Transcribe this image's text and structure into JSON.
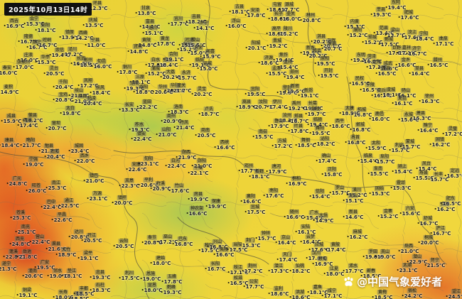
{
  "header": {
    "timestamp": "2025年10月13日14时"
  },
  "watermark": {
    "icon": "paw-logo-icon",
    "text": "@中国气象爱好者"
  },
  "map": {
    "description": "地面气温实况图（中国中部地区）",
    "unit": "℃",
    "palette": {
      "cool_green": "#9ccb5d",
      "warm_yellow": "#eed338",
      "hot_orange": "#ee9a3c",
      "very_hot_red": "#d8512a",
      "boundary_gray": "#6b6a55"
    }
  },
  "stations": [
    [
      "西吉",
      "16.9℃",
      20,
      30
    ],
    [
      "会宁",
      "15.3℃",
      48,
      27
    ],
    [
      "彭阳",
      "18.1℃",
      64,
      36
    ],
    [
      "环县",
      "12.3℃",
      137,
      5
    ],
    [
      "庆城",
      "13.5℃",
      131,
      29
    ],
    [
      "镇原",
      "13.9℃",
      98,
      46
    ],
    [
      "西峰",
      "14.2℃",
      117,
      47
    ],
    [
      "宁县",
      "11.0℃",
      134,
      57
    ],
    [
      "隆德",
      "16.7℃",
      40,
      52
    ],
    [
      "静宁",
      "16.7℃",
      52,
      60
    ],
    [
      "崆峒",
      "16.7℃",
      66,
      57
    ],
    [
      "庄浪",
      "16.0℃",
      40,
      78
    ],
    [
      "华亭",
      "15.3℃",
      64,
      81
    ],
    [
      "崇信",
      "19.4℃",
      84,
      71
    ],
    [
      "泾川",
      "17.2℃",
      102,
      70
    ],
    [
      "灵台",
      "20.5℃",
      76,
      97
    ],
    [
      "张家川",
      "17.0℃",
      33,
      88
    ],
    [
      "秦安",
      "16.0℃",
      10,
      96
    ],
    [
      "长武",
      "16.3℃",
      114,
      83
    ],
    [
      "彬州",
      "18.5℃",
      124,
      85
    ],
    [
      "旬邑",
      "16.0℃",
      143,
      87
    ],
    [
      "甘泉",
      "13.8℃",
      205,
      12
    ],
    [
      "宜川",
      "17.7℃",
      251,
      27
    ],
    [
      "富县",
      "14.1℃",
      211,
      31
    ],
    [
      "洛川",
      "15.1℃",
      215,
      40
    ],
    [
      "黄龙",
      "17.8℃",
      232,
      55
    ],
    [
      "黄陵",
      "14.8℃",
      206,
      57
    ],
    [
      "宜君",
      "14.8℃",
      194,
      66
    ],
    [
      "铜川",
      "17.8℃",
      179,
      95
    ],
    [
      "白水",
      "17.8℃",
      219,
      85
    ],
    [
      "澄城",
      "18.4℃",
      236,
      85
    ],
    [
      "合阳",
      "19.1℃",
      244,
      77
    ],
    [
      "蒲城",
      "15.2℃",
      219,
      97
    ],
    [
      "韩城",
      "15.2℃",
      264,
      63
    ],
    [
      "大荔",
      "20.2℃",
      240,
      102
    ],
    [
      "吉县",
      "18.2℃",
      276,
      24
    ],
    [
      "乡宁",
      "14.1℃",
      287,
      33
    ],
    [
      "河津",
      "15.5℃",
      266,
      57
    ],
    [
      "稷山",
      "15.5℃",
      275,
      57
    ],
    [
      "万荣",
      "15.0℃",
      279,
      68
    ],
    [
      "临猗",
      "19.1℃",
      281,
      85
    ],
    [
      "运城",
      "15.0℃",
      292,
      90
    ],
    [
      "永济",
      "15.7℃",
      262,
      103
    ],
    [
      "闻喜",
      "15.9℃",
      296,
      73
    ],
    [
      "古县",
      "18.1℃",
      337,
      10
    ],
    [
      "安泽",
      "17.8℃",
      359,
      15
    ],
    [
      "浮山",
      "16.0℃",
      332,
      30
    ],
    [
      "屯留",
      "18.6℃",
      390,
      7
    ],
    [
      "潞城",
      "17.7℃",
      407,
      7
    ],
    [
      "长子",
      "18.6℃",
      392,
      20
    ],
    [
      "壶关",
      "16.0℃",
      409,
      20
    ],
    [
      "高平",
      "18.6℃",
      389,
      41
    ],
    [
      "陵川",
      "15.2℃",
      405,
      41
    ],
    [
      "阳城",
      "20.1℃",
      360,
      61
    ],
    [
      "晋城",
      "19.2℃",
      390,
      58
    ],
    [
      "林州",
      "20.8℃",
      437,
      22
    ],
    [
      "卫辉",
      "20.1℃",
      466,
      58
    ],
    [
      "淇县",
      "20.2℃",
      452,
      52
    ],
    [
      "浚县",
      "20.7℃",
      467,
      62
    ],
    [
      "新乡",
      "19.5℃",
      437,
      68
    ],
    [
      "修武",
      "20.2℃",
      446,
      72
    ],
    [
      "焦作",
      "19.4℃",
      399,
      78
    ],
    [
      "济源",
      "18.6℃",
      378,
      82
    ],
    [
      "孟州",
      "15.4℃",
      405,
      88
    ],
    [
      "孟津",
      "15.5℃",
      389,
      97
    ],
    [
      "原阳",
      "19.5℃",
      457,
      83
    ],
    [
      "郑州",
      "19.4℃",
      414,
      102
    ],
    [
      "开封",
      "19.5℃",
      462,
      100
    ],
    [
      "内黄",
      "15.3℃",
      499,
      31
    ],
    [
      "濮阳",
      "15.2℃",
      503,
      43
    ],
    [
      "东阿",
      "19.4℃",
      557,
      4
    ],
    [
      "莘县",
      "19.3℃",
      536,
      14
    ],
    [
      "肥城",
      "17.6℃",
      575,
      18
    ],
    [
      "范县",
      "13.4℃",
      540,
      40
    ],
    [
      "梁山",
      "13.7℃",
      556,
      43
    ],
    [
      "汶上",
      "17.6℃",
      580,
      46
    ],
    [
      "宁阳",
      "18.4℃",
      596,
      48
    ],
    [
      "曲阜",
      "17.1℃",
      624,
      55
    ],
    [
      "郓城",
      "15.2℃",
      524,
      53
    ],
    [
      "鄄城",
      "17.5℃",
      547,
      56
    ],
    [
      "巨野",
      "17.6℃",
      558,
      68
    ],
    [
      "嘉祥",
      "17.1℃",
      572,
      68
    ],
    [
      "济宁",
      "16.7℃",
      586,
      69
    ],
    [
      "东明",
      "19.3℃",
      508,
      78
    ],
    [
      "菏泽",
      "16.0℃",
      523,
      80
    ],
    [
      "定陶",
      "17.3℃",
      530,
      88
    ],
    [
      "成武",
      "16.6℃",
      546,
      90
    ],
    [
      "金乡",
      "16.6℃",
      571,
      85
    ],
    [
      "滕州",
      "16.5℃",
      616,
      85
    ],
    [
      "曹县",
      "16.5℃",
      543,
      97
    ],
    [
      "单县",
      "16.4℃",
      590,
      97
    ],
    [
      "麦积",
      "14.9℃",
      12,
      123
    ],
    [
      "千阳",
      "20.4℃",
      89,
      116
    ],
    [
      "凤翔",
      "17.2℃",
      124,
      114
    ],
    [
      "宝鸡",
      "20.8℃",
      89,
      134
    ],
    [
      "岐山",
      "21.1℃",
      111,
      128
    ],
    [
      "眉县",
      "21.0℃",
      116,
      136
    ],
    [
      "扶风",
      "18.4℃",
      141,
      124
    ],
    [
      "杨凌",
      "20.4℃",
      129,
      139
    ],
    [
      "太白",
      "19.8℃",
      99,
      153
    ],
    [
      "三原",
      "18.1℃",
      197,
      109
    ],
    [
      "泾阳",
      "19.3℃",
      189,
      118
    ],
    [
      "咸阳",
      "18.8℃",
      202,
      123
    ],
    [
      "华州",
      "20.6℃",
      229,
      123
    ],
    [
      "华阴",
      "20.3℃",
      246,
      121
    ],
    [
      "潼关",
      "21.7℃",
      255,
      121
    ],
    [
      "蓝田",
      "22.2℃",
      207,
      144
    ],
    [
      "长安",
      "13.3℃",
      182,
      148
    ],
    [
      "成县",
      "15.9℃",
      16,
      164
    ],
    [
      "徽县",
      "16.2℃",
      46,
      163
    ],
    [
      "两当",
      "17.4℃",
      39,
      170
    ],
    [
      "留坝",
      "20.7℃",
      79,
      174
    ],
    [
      "略阳",
      "21.7℃",
      43,
      198
    ],
    [
      "康县",
      "18.4℃",
      13,
      198
    ],
    [
      "勉县",
      "21.7℃",
      69,
      206
    ],
    [
      "城固",
      "23.4℃",
      111,
      206
    ],
    [
      "南郑",
      "20.4℃",
      77,
      214
    ],
    [
      "宁强",
      "19.0℃",
      47,
      225
    ],
    [
      "西乡",
      "22.0℃",
      119,
      220
    ],
    [
      "镇巴",
      "21.0℃",
      132,
      248
    ],
    [
      "洛南",
      "18.3℃",
      251,
      151
    ],
    [
      "商州",
      "20.9℃",
      241,
      164
    ],
    [
      "丹凤",
      "21.4℃",
      259,
      173
    ],
    [
      "柞水",
      "19.3℃",
      196,
      176
    ],
    [
      "山阳",
      "21.0℃",
      234,
      183
    ],
    [
      "镇安",
      "22.4℃",
      199,
      189
    ],
    [
      "商南",
      "20.5℃",
      289,
      184
    ],
    [
      "灵宝",
      "20.2℃",
      284,
      126
    ],
    [
      "卢氏",
      "18.7℃",
      294,
      154
    ],
    [
      "西峡",
      "16.6℃",
      316,
      201
    ],
    [
      "宜阳",
      "19.5℃",
      359,
      126
    ],
    [
      "登封",
      "19.0℃",
      404,
      124
    ],
    [
      "新密",
      "19.5℃",
      415,
      122
    ],
    [
      "新郑",
      "19.1℃",
      434,
      128
    ],
    [
      "嵩县",
      "18.9℃",
      347,
      144
    ],
    [
      "汝阳",
      "20.7℃",
      370,
      144
    ],
    [
      "伊川",
      "17.4℃",
      390,
      144
    ],
    [
      "禹州",
      "19.2℃",
      417,
      146
    ],
    [
      "长葛",
      "19.4℃",
      440,
      146
    ],
    [
      "鄢陵",
      "19.7℃",
      444,
      154
    ],
    [
      "汝州",
      "18.3℃",
      404,
      163
    ],
    [
      "郏县",
      "18.7℃",
      420,
      164
    ],
    [
      "鲁山",
      "17.9℃",
      392,
      171
    ],
    [
      "临颍",
      "19.4℃",
      447,
      169
    ],
    [
      "西平",
      "18.6℃",
      478,
      171
    ],
    [
      "南召",
      "15.5℃",
      370,
      186
    ],
    [
      "叶县",
      "17.8℃",
      420,
      178
    ],
    [
      "舞阳",
      "19.5℃",
      450,
      181
    ],
    [
      "方城",
      "17.2℃",
      397,
      199
    ],
    [
      "舞钢",
      "18.5℃",
      430,
      198
    ],
    [
      "泌阳",
      "18.2℃",
      457,
      196
    ],
    [
      "民权",
      "16.5℃",
      506,
      111
    ],
    [
      "宁陵",
      "16.5℃",
      521,
      120
    ],
    [
      "商丘",
      "16.1℃",
      537,
      128
    ],
    [
      "虞城",
      "18.1℃",
      550,
      127
    ],
    [
      "砀山",
      "16.1℃",
      571,
      128
    ],
    [
      "夏邑",
      "16.1℃",
      566,
      139
    ],
    [
      "永城",
      "15.6℃",
      575,
      162
    ],
    [
      "萧县",
      "15.3℃",
      592,
      160
    ],
    [
      "徐州",
      "16.3℃",
      604,
      136
    ],
    [
      "睢宁",
      "16.4℃",
      602,
      177
    ],
    [
      "灵璧",
      "17.2℃",
      637,
      182
    ],
    [
      "柘城",
      "16.8℃",
      509,
      155
    ],
    [
      "鹿邑",
      "16.0℃",
      534,
      161
    ],
    [
      "太康",
      "18.9℃",
      492,
      153
    ],
    [
      "郸城",
      "16.8℃",
      507,
      176
    ],
    [
      "界首",
      "16.8℃",
      500,
      194
    ],
    [
      "太和",
      "15.9℃",
      529,
      202
    ],
    [
      "利辛",
      "15.7℃",
      562,
      205
    ],
    [
      "蒙城",
      "15.7℃",
      577,
      200
    ],
    [
      "固镇",
      "16.2℃",
      619,
      197
    ],
    [
      "广元",
      "24.8℃",
      24,
      252
    ],
    [
      "旺苍",
      "26.0℃",
      51,
      262
    ],
    [
      "南江",
      "25.3℃",
      79,
      258
    ],
    [
      "苍溪",
      "25.3℃",
      29,
      300
    ],
    [
      "巴中",
      "22.4℃",
      72,
      285
    ],
    [
      "通江",
      "22.5℃",
      97,
      283
    ],
    [
      "平昌",
      "22.6℃",
      87,
      303
    ],
    [
      "万源",
      "23.1℃",
      137,
      273
    ],
    [
      "安康",
      "22.6℃",
      192,
      232
    ],
    [
      "旬阳",
      "23.1℃",
      209,
      224
    ],
    [
      "白河",
      "22.4℃",
      247,
      227
    ],
    [
      "郧西",
      "21.9℃",
      262,
      215
    ],
    [
      "郧阳",
      "21.0℃",
      284,
      227
    ],
    [
      "十堰",
      "22.1℃",
      279,
      237
    ],
    [
      "岚皋",
      "22.3℃",
      182,
      255
    ],
    [
      "平利",
      "20.6℃",
      209,
      254
    ],
    [
      "镇坪",
      "20.0℃",
      172,
      279
    ],
    [
      "竹溪",
      "20.9℃",
      226,
      259
    ],
    [
      "竹山",
      "17.6℃",
      252,
      262
    ],
    [
      "房县",
      "19.9℃",
      279,
      274
    ],
    [
      "保康",
      "19.9℃",
      304,
      284
    ],
    [
      "神农架",
      "16.6℃",
      277,
      294
    ],
    [
      "邓州",
      "17.7℃",
      350,
      234
    ],
    [
      "新野",
      "18.1℃",
      365,
      242
    ],
    [
      "唐河",
      "17.9℃",
      389,
      235
    ],
    [
      "桐柏",
      "16.9℃",
      417,
      252
    ],
    [
      "确山",
      "17.4℃",
      459,
      220
    ],
    [
      "正阳",
      "15.8℃",
      467,
      239
    ],
    [
      "信阳",
      "15.4℃",
      450,
      270
    ],
    [
      "罗山",
      "15.7℃",
      478,
      265
    ],
    [
      "襄阳",
      "16.6℃",
      353,
      277
    ],
    [
      "枣阳",
      "17.6℃",
      385,
      269
    ],
    [
      "宜城",
      "17.5℃",
      359,
      292
    ],
    [
      "随州",
      "16.6℃",
      414,
      299
    ],
    [
      "广水",
      "15.4℃",
      442,
      300
    ],
    [
      "大悟",
      "14.9℃",
      455,
      304
    ],
    [
      "临泉",
      "15.4℃",
      518,
      220
    ],
    [
      "阜阳",
      "15.7℃",
      541,
      221
    ],
    [
      "阜南",
      "15.5℃",
      532,
      238
    ],
    [
      "颍上",
      "15.4℃",
      566,
      235
    ],
    [
      "凤台",
      "15.4℃",
      600,
      231
    ],
    [
      "寿县",
      "15.5℃",
      596,
      244
    ],
    [
      "长丰",
      "15.7℃",
      617,
      246
    ],
    [
      "定远",
      "16.3℃",
      640,
      241
    ],
    [
      "霍邱",
      "15.3℃",
      564,
      258
    ],
    [
      "固始",
      "15.3℃",
      534,
      266
    ],
    [
      "潢川",
      "15.2℃",
      502,
      268
    ],
    [
      "光山",
      "15.1℃",
      497,
      276
    ],
    [
      "新县",
      "14.6℃",
      497,
      299
    ],
    [
      "金寨",
      "15.2℃",
      546,
      298
    ],
    [
      "六安",
      "15.6℃",
      577,
      294
    ],
    [
      "合肥",
      "16.2℃",
      626,
      288
    ],
    [
      "肥东",
      "16.5℃",
      634,
      280
    ],
    [
      "舒城",
      "16.7℃",
      602,
      308
    ],
    [
      "南充",
      "25.1℃",
      36,
      320
    ],
    [
      "西充",
      "24.8℃",
      28,
      337
    ],
    [
      "营山",
      "22.4℃",
      56,
      334
    ],
    [
      "渠县",
      "21.6℃",
      79,
      344
    ],
    [
      "大竹",
      "18.9℃",
      93,
      352
    ],
    [
      "达川",
      "20.8℃",
      111,
      327
    ],
    [
      "开江",
      "20.5℃",
      129,
      332
    ],
    [
      "梁平",
      "19.1℃",
      124,
      357
    ],
    [
      "蓬溪",
      "22.8℃",
      19,
      355
    ],
    [
      "遂宁",
      "21.3℃",
      9,
      372
    ],
    [
      "岳池",
      "21.8℃",
      38,
      355
    ],
    [
      "广安",
      "19.5℃",
      63,
      370
    ],
    [
      "潼南",
      "20.6℃",
      46,
      382
    ],
    [
      "邻水",
      "19.0℃",
      81,
      382
    ],
    [
      "垫江",
      "18.1℃",
      101,
      382
    ],
    [
      "忠县",
      "19.3℃",
      141,
      384
    ],
    [
      "铜梁",
      "19.1℃",
      38,
      409
    ],
    [
      "长寿",
      "18.0℃",
      89,
      412
    ],
    [
      "渝北",
      "18.5℃",
      111,
      414
    ],
    [
      "丰都",
      "18.5℃",
      118,
      407
    ],
    [
      "石柱",
      "18.3℃",
      141,
      402
    ],
    [
      "云阳",
      "20.5℃",
      174,
      340
    ],
    [
      "奉节",
      "20.8℃",
      214,
      335
    ],
    [
      "巫山",
      "17.2℃",
      236,
      334
    ],
    [
      "巴东",
      "16.8℃",
      257,
      337
    ],
    [
      "秭归",
      "17.5℃",
      294,
      346
    ],
    [
      "兴山",
      "16.8℃",
      306,
      341
    ],
    [
      "夷陵",
      "16.6℃",
      315,
      352
    ],
    [
      "建始",
      "18.0℃",
      226,
      364
    ],
    [
      "利川",
      "17.5℃",
      182,
      385
    ],
    [
      "恩施",
      "19.0℃",
      212,
      386
    ],
    [
      "宣恩",
      "18.0℃",
      214,
      402
    ],
    [
      "鹤峰",
      "19.3℃",
      241,
      405
    ],
    [
      "五峰",
      "17.8℃",
      242,
      390
    ],
    [
      "长阳",
      "16.7℃",
      303,
      372
    ],
    [
      "钟祥",
      "15.7℃",
      374,
      329
    ],
    [
      "荆门",
      "15.3℃",
      352,
      339
    ],
    [
      "京山",
      "16.4℃",
      402,
      335
    ],
    [
      "安陆",
      "16.1℃",
      430,
      320
    ],
    [
      "云梦",
      "16.4℃",
      437,
      334
    ],
    [
      "应城",
      "17.6℃",
      449,
      345
    ],
    [
      "黄陂",
      "17.4℃",
      472,
      345
    ],
    [
      "当阳",
      "17.5℃",
      334,
      345
    ],
    [
      "枝江",
      "17.1℃",
      335,
      377
    ],
    [
      "荆州",
      "17.2℃",
      355,
      375
    ],
    [
      "潜江",
      "17.3℃",
      392,
      375
    ],
    [
      "天门",
      "17.4℃",
      404,
      359
    ],
    [
      "仙桃",
      "18.2℃",
      422,
      375
    ],
    [
      "汉川",
      "17.8℃",
      445,
      357
    ],
    [
      "蔡甸",
      "16.9℃",
      454,
      365
    ],
    [
      "江夏",
      "18.0℃",
      470,
      379
    ],
    [
      "松滋",
      "16.5℃",
      335,
      392
    ],
    [
      "公安",
      "17.7℃",
      357,
      397
    ],
    [
      "监利",
      "18.6℃",
      392,
      407
    ],
    [
      "洪湖",
      "18.6℃",
      422,
      412
    ],
    [
      "嘉鱼",
      "18.1℃",
      447,
      405
    ],
    [
      "咸宁",
      "17.1℃",
      467,
      410
    ],
    [
      "麻城",
      "16.2℃",
      503,
      327
    ],
    [
      "罗田",
      "19.0℃",
      525,
      355
    ],
    [
      "英山",
      "19.0℃",
      542,
      355
    ],
    [
      "浠水",
      "17.7℃",
      497,
      375
    ],
    [
      "蕲春",
      "18.5℃",
      522,
      382
    ],
    [
      "黄梅",
      "18.5℃",
      538,
      412
    ],
    [
      "岳西",
      "21.0℃",
      575,
      347
    ],
    [
      "潜山",
      "22.9℃",
      587,
      362
    ],
    [
      "太湖",
      "23.1℃",
      573,
      374
    ],
    [
      "桐城",
      "20.0℃",
      603,
      335
    ],
    [
      "庐江",
      "16.7℃",
      620,
      322
    ],
    [
      "怀宁",
      "21.5℃",
      612,
      367
    ],
    [
      "宿松",
      "24.2℃",
      580,
      410
    ],
    [
      "望江",
      "24.5℃",
      642,
      411
    ]
  ]
}
